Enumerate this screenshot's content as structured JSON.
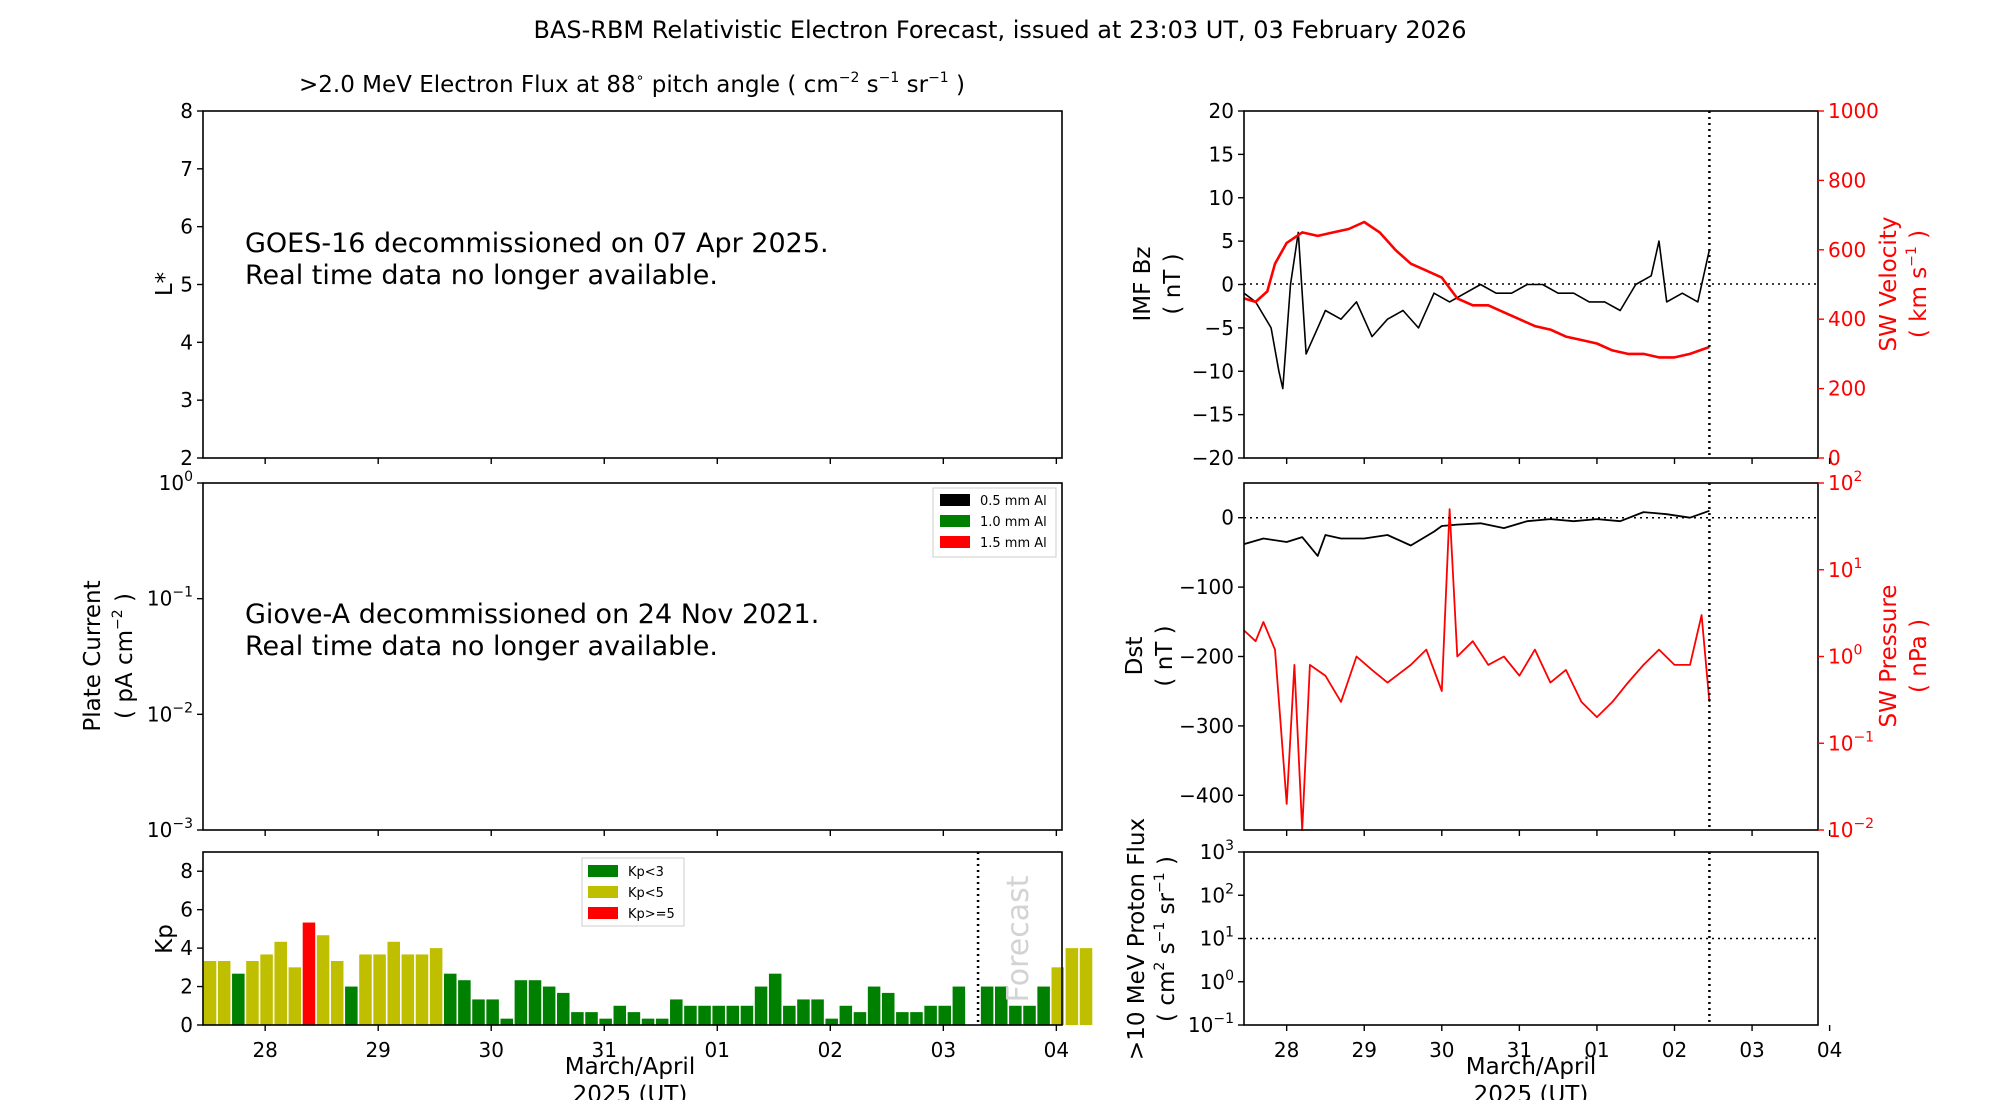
{
  "title": "BAS-RBM Relativistic Electron Forecast, issued at 23:03 UT, 03 February 2026",
  "x_ticks": [
    "28",
    "29",
    "30",
    "31",
    "01",
    "02",
    "03",
    "04"
  ],
  "x_label": [
    "March/April",
    "2025 (UT)"
  ],
  "forecast_label": "Forecast",
  "colors": {
    "black": "#000000",
    "green": "#008000",
    "olive": "#bfbf00",
    "red": "#ff0000",
    "grey": "#d3d3d3"
  },
  "chart_data": [
    {
      "id": "electron_flux",
      "type": "heatmap",
      "title_parts": [
        ">2.0 MeV Electron Flux at 88",
        "∘",
        " pitch angle ( cm",
        "−2",
        " s",
        "−1",
        " sr",
        "−1",
        " )"
      ],
      "ylabel": "L*",
      "ylim": [
        2,
        8
      ],
      "y_ticks": [
        "2",
        "3",
        "4",
        "5",
        "6",
        "7",
        "8"
      ],
      "message": [
        "GOES-16 decommissioned on 07 Apr 2025.",
        "Real time data no longer available."
      ]
    },
    {
      "id": "plate_current",
      "type": "line",
      "ylabel": [
        "Plate Current",
        "( pA cm",
        "−2",
        " )"
      ],
      "y_scale": "log",
      "y_ticks": [
        {
          "b": "10",
          "e": "−3"
        },
        {
          "b": "10",
          "e": "−2"
        },
        {
          "b": "10",
          "e": "−1"
        },
        {
          "b": "10",
          "e": "0"
        }
      ],
      "legend": [
        {
          "name": "0.5 mm Al",
          "color": "#000000"
        },
        {
          "name": "1.0 mm Al",
          "color": "#008000"
        },
        {
          "name": "1.5 mm Al",
          "color": "#ff0000"
        }
      ],
      "legend_position": "top-right",
      "message": [
        "Giove-A decommissioned on 24 Nov 2021.",
        "Real time data no longer available."
      ]
    },
    {
      "id": "kp",
      "type": "bar",
      "ylabel": "Kp",
      "ylim": [
        0,
        9
      ],
      "y_ticks": [
        "0",
        "2",
        "4",
        "6",
        "8"
      ],
      "legend": [
        {
          "name": "Kp<3",
          "color": "#008000"
        },
        {
          "name": "Kp<5",
          "color": "#bfbf00"
        },
        {
          "name": "Kp>=5",
          "color": "#ff0000"
        }
      ],
      "legend_position": "top-center",
      "x_start_day": 27.45,
      "bin_days": 0.125,
      "values": [
        3.33,
        3.33,
        2.67,
        3.33,
        3.67,
        4.33,
        3.0,
        5.33,
        4.67,
        3.33,
        2.0,
        3.67,
        3.67,
        4.33,
        3.67,
        3.67,
        4.0,
        2.67,
        2.33,
        1.33,
        1.33,
        0.33,
        2.33,
        2.33,
        2.0,
        1.67,
        0.67,
        0.67,
        0.33,
        1.0,
        0.67,
        0.33,
        0.33,
        1.33,
        1.0,
        1.0,
        1.0,
        1.0,
        1.0,
        2.0,
        2.67,
        1.0,
        1.33,
        1.33,
        0.33,
        1.0,
        0.67,
        2.0,
        1.67,
        0.67,
        0.67,
        1.0,
        1.0,
        2.0,
        null,
        2.0,
        2.0,
        1.0,
        1.0,
        2.0,
        3.0,
        4.0,
        4.0
      ],
      "forecast_start_index": 55
    },
    {
      "id": "imf_sw",
      "type": "line",
      "ylabel_left": [
        "IMF Bz",
        "( nT )"
      ],
      "ylim_left": [
        -20,
        20
      ],
      "y_ticks_left": [
        "−20",
        "−15",
        "−10",
        "−5",
        "0",
        "5",
        "10",
        "15",
        "20"
      ],
      "ylabel_right": [
        "SW Velocity",
        "( km s",
        "−1",
        " )"
      ],
      "ylim_right": [
        0,
        1000
      ],
      "y_ticks_right": [
        "0",
        "200",
        "400",
        "600",
        "800",
        "1000"
      ],
      "series": [
        {
          "axis": "left",
          "color": "#000000",
          "x": [
            27.45,
            27.6,
            27.8,
            27.9,
            27.95,
            28.05,
            28.15,
            28.25,
            28.4,
            28.5,
            28.7,
            28.9,
            29.1,
            29.3,
            29.5,
            29.7,
            29.9,
            30.1,
            30.3,
            30.5,
            30.7,
            30.9,
            31.1,
            31.3,
            31.5,
            31.7,
            31.9,
            32.1,
            32.3,
            32.5,
            32.7,
            32.8,
            32.9,
            33.1,
            33.3,
            33.45
          ],
          "y": [
            -1,
            -2,
            -5,
            -10,
            -12,
            0,
            6,
            -8,
            -5,
            -3,
            -4,
            -2,
            -6,
            -4,
            -3,
            -5,
            -1,
            -2,
            -1,
            0,
            -1,
            -1,
            0,
            0,
            -1,
            -1,
            -2,
            -2,
            -3,
            0,
            1,
            5,
            -2,
            -1,
            -2,
            4
          ]
        },
        {
          "axis": "right",
          "color": "#ff0000",
          "x": [
            27.45,
            27.6,
            27.75,
            27.85,
            28.0,
            28.2,
            28.4,
            28.6,
            28.8,
            29.0,
            29.2,
            29.4,
            29.6,
            29.8,
            30.0,
            30.2,
            30.4,
            30.6,
            30.8,
            31.0,
            31.2,
            31.4,
            31.6,
            31.8,
            32.0,
            32.2,
            32.4,
            32.6,
            32.8,
            33.0,
            33.2,
            33.45
          ],
          "y": [
            460,
            450,
            480,
            560,
            620,
            650,
            640,
            650,
            660,
            680,
            650,
            600,
            560,
            540,
            520,
            460,
            440,
            440,
            420,
            400,
            380,
            370,
            350,
            340,
            330,
            310,
            300,
            300,
            290,
            290,
            300,
            320
          ]
        }
      ],
      "reference_lines": [
        {
          "axis": "left",
          "y": 0,
          "style": "dotted"
        }
      ]
    },
    {
      "id": "dst_pressure",
      "type": "line",
      "ylabel_left": [
        "Dst",
        "( nT )"
      ],
      "ylim_left": [
        -450,
        50
      ],
      "y_ticks_left": [
        "−400",
        "−300",
        "−200",
        "−100",
        "0"
      ],
      "ylabel_right": [
        "SW Pressure",
        "( nPa )"
      ],
      "y_scale_right": "log",
      "y_ticks_right": [
        {
          "b": "10",
          "e": "−2"
        },
        {
          "b": "10",
          "e": "−1"
        },
        {
          "b": "10",
          "e": "0"
        },
        {
          "b": "10",
          "e": "1"
        },
        {
          "b": "10",
          "e": "2"
        }
      ],
      "series": [
        {
          "axis": "left",
          "color": "#000000",
          "x": [
            27.45,
            27.7,
            28.0,
            28.2,
            28.4,
            28.5,
            28.7,
            29.0,
            29.3,
            29.6,
            29.9,
            30.0,
            30.2,
            30.5,
            30.8,
            31.1,
            31.4,
            31.7,
            32.0,
            32.3,
            32.6,
            32.9,
            33.2,
            33.45
          ],
          "y": [
            -38,
            -30,
            -35,
            -28,
            -55,
            -25,
            -30,
            -30,
            -25,
            -40,
            -20,
            -12,
            -10,
            -8,
            -15,
            -5,
            -2,
            -5,
            -2,
            -5,
            8,
            5,
            0,
            10
          ]
        },
        {
          "axis": "right",
          "color": "#ff0000",
          "x": [
            27.45,
            27.6,
            27.7,
            27.85,
            28.0,
            28.1,
            28.2,
            28.3,
            28.5,
            28.7,
            28.9,
            29.1,
            29.3,
            29.6,
            29.8,
            30.0,
            30.1,
            30.2,
            30.4,
            30.6,
            30.8,
            31.0,
            31.2,
            31.4,
            31.6,
            31.8,
            32.0,
            32.2,
            32.4,
            32.6,
            32.8,
            33.0,
            33.2,
            33.35,
            33.45
          ],
          "y": [
            2,
            1.5,
            2.5,
            1.2,
            0.02,
            0.8,
            0.01,
            0.8,
            0.6,
            0.3,
            1.0,
            0.7,
            0.5,
            0.8,
            1.2,
            0.4,
            50,
            1.0,
            1.5,
            0.8,
            1.0,
            0.6,
            1.2,
            0.5,
            0.7,
            0.3,
            0.2,
            0.3,
            0.5,
            0.8,
            1.2,
            0.8,
            0.8,
            3.0,
            0.3
          ]
        }
      ],
      "reference_lines": [
        {
          "axis": "left",
          "y": 0,
          "style": "dotted"
        }
      ]
    },
    {
      "id": "proton_flux",
      "type": "line",
      "ylabel": [
        ">10 MeV Proton Flux",
        "( cm",
        "2",
        " s",
        "−1",
        " sr",
        "−1",
        " )"
      ],
      "y_scale": "log",
      "y_ticks": [
        {
          "b": "10",
          "e": "−1"
        },
        {
          "b": "10",
          "e": "0"
        },
        {
          "b": "10",
          "e": "1"
        },
        {
          "b": "10",
          "e": "2"
        },
        {
          "b": "10",
          "e": "3"
        }
      ],
      "reference_lines": [
        {
          "y": 10,
          "style": "dotted"
        }
      ]
    }
  ]
}
